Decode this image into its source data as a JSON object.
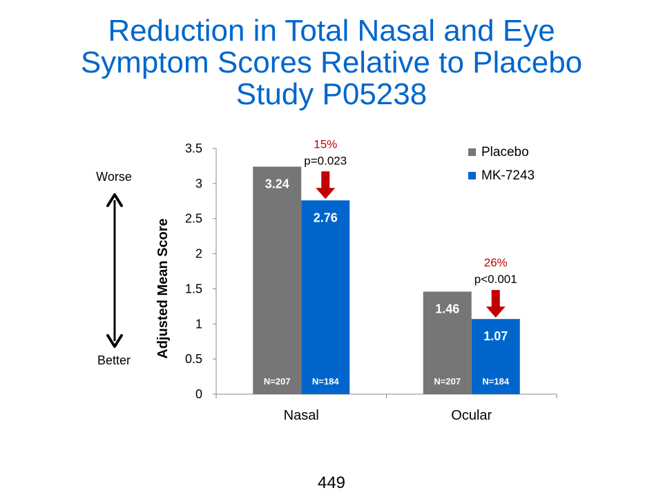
{
  "slide": {
    "title_lines": [
      "Reduction in Total Nasal and Eye",
      "Symptom Scores Relative to Placebo",
      "Study P05238"
    ],
    "page_number": "449"
  },
  "scale_indicator": {
    "top_label": "Worse",
    "bottom_label": "Better"
  },
  "colors": {
    "placebo": "#767676",
    "mk7243": "#0066cc",
    "arrow": "#c00000",
    "percent_text": "#c00000",
    "title": "#0066cc"
  },
  "chart_data": {
    "type": "bar",
    "title": "",
    "xlabel": "",
    "ylabel": "Adjusted Mean Score",
    "ylim": [
      0,
      3.5
    ],
    "yticks": [
      0,
      0.5,
      1,
      1.5,
      2,
      2.5,
      3,
      3.5
    ],
    "ytick_labels": [
      "0",
      "0.5",
      "1",
      "1.5",
      "2",
      "2.5",
      "3",
      "3.5"
    ],
    "categories": [
      "Nasal",
      "Ocular"
    ],
    "series": [
      {
        "name": "Placebo",
        "values": [
          3.24,
          1.46
        ],
        "value_labels": [
          "3.24",
          "1.46"
        ],
        "n_labels": [
          "N=207",
          "N=207"
        ]
      },
      {
        "name": "MK-7243",
        "values": [
          2.76,
          1.07
        ],
        "value_labels": [
          "2.76",
          "1.07"
        ],
        "n_labels": [
          "N=184",
          "N=184"
        ]
      }
    ],
    "annotations": [
      {
        "category": "Nasal",
        "percent": "15%",
        "pvalue": "p=0.023"
      },
      {
        "category": "Ocular",
        "percent": "26%",
        "pvalue": "p<0.001"
      }
    ],
    "legend": {
      "position": "top-right"
    },
    "grid": false
  }
}
